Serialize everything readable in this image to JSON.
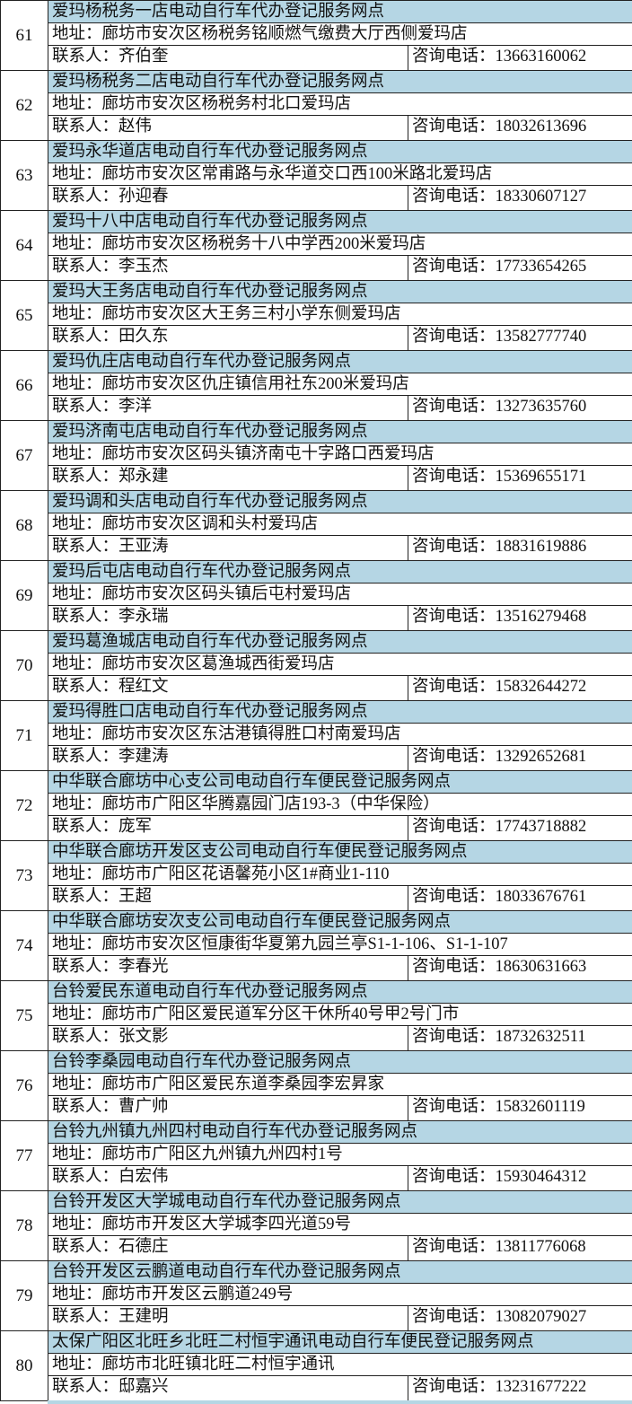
{
  "labels": {
    "address": "地址：",
    "contact": "联系人：",
    "phone": "咨询电话："
  },
  "colors": {
    "title_fill": "#b5d6e4",
    "border": "#222222"
  },
  "entries": [
    {
      "no": "61",
      "name": "爱玛杨税务一店电动自行车代办登记服务网点",
      "address": "廊坊市安次区杨税务铭顺燃气缴费大厅西侧爱玛店",
      "contact": "齐伯奎",
      "phone": "13663160062"
    },
    {
      "no": "62",
      "name": "爱玛杨税务二店电动自行车代办登记服务网点",
      "address": "廊坊市安次区杨税务村北口爱玛店",
      "contact": "赵伟",
      "phone": "18032613696"
    },
    {
      "no": "63",
      "name": "爱玛永华道店电动自行车代办登记服务网点",
      "address": "廊坊市安次区常甫路与永华道交口西100米路北爱玛店",
      "contact": "孙迎春",
      "phone": "18330607127"
    },
    {
      "no": "64",
      "name": "爱玛十八中店电动自行车代办登记服务网点",
      "address": "廊坊市安次区杨税务十八中学西200米爱玛店",
      "contact": "李玉杰",
      "phone": "17733654265"
    },
    {
      "no": "65",
      "name": "爱玛大王务店电动自行车代办登记服务网点",
      "address": "廊坊市安次区大王务三村小学东侧爱玛店",
      "contact": "田久东",
      "phone": "13582777740"
    },
    {
      "no": "66",
      "name": "爱玛仇庄店电动自行车代办登记服务网点",
      "address": "廊坊市安次区仇庄镇信用社东200米爱玛店",
      "contact": "李洋",
      "phone": "13273635760"
    },
    {
      "no": "67",
      "name": "爱玛济南屯店电动自行车代办登记服务网点",
      "address": "廊坊市安次区码头镇济南屯十字路口西爱玛店",
      "contact": "郑永建",
      "phone": "15369655171"
    },
    {
      "no": "68",
      "name": "爱玛调和头店电动自行车代办登记服务网点",
      "address": "廊坊市安次区调和头村爱玛店",
      "contact": "王亚涛",
      "phone": "18831619886"
    },
    {
      "no": "69",
      "name": "爱玛后屯店电动自行车代办登记服务网点",
      "address": "廊坊市安次区码头镇后屯村爱玛店",
      "contact": "李永瑞",
      "phone": "13516279468"
    },
    {
      "no": "70",
      "name": "爱玛葛渔城店电动自行车代办登记服务网点",
      "address": "廊坊市安次区葛渔城西街爱玛店",
      "contact": "程红文",
      "phone": "15832644272"
    },
    {
      "no": "71",
      "name": "爱玛得胜口店电动自行车代办登记服务网点",
      "address": "廊坊市安次区东沽港镇得胜口村南爱玛店",
      "contact": "李建涛",
      "phone": "13292652681"
    },
    {
      "no": "72",
      "name": "中华联合廊坊中心支公司电动自行车便民登记服务网点",
      "address": "廊坊市广阳区华腾嘉园门店193-3（中华保险）",
      "contact": "庞军",
      "phone": "17743718882"
    },
    {
      "no": "73",
      "name": "中华联合廊坊开发区支公司电动自行车便民登记服务网点",
      "address": "廊坊市广阳区花语馨苑小区1#商业1-110",
      "contact": "王超",
      "phone": "18033676761"
    },
    {
      "no": "74",
      "name": "中华联合廊坊安次支公司电动自行车便民登记服务网点",
      "address": "廊坊市安次区恒康街华夏第九园兰亭S1-1-106、S1-1-107",
      "contact": "李春光",
      "phone": "18630631663"
    },
    {
      "no": "75",
      "name": "台铃爱民东道电动自行车代办登记服务网点",
      "address": "廊坊市广阳区爱民道军分区干休所40号甲2号门市",
      "contact": "张文影",
      "phone": "18732632511"
    },
    {
      "no": "76",
      "name": "台铃李桑园电动自行车代办登记服务网点",
      "address": "廊坊市广阳区爱民东道李桑园李宏昇家",
      "contact": "曹广帅",
      "phone": "15832601119"
    },
    {
      "no": "77",
      "name": "台铃九州镇九州四村电动自行车代办登记服务网点",
      "address": "廊坊市广阳区九州镇九州四村1号",
      "contact": "白宏伟",
      "phone": "15930464312"
    },
    {
      "no": "78",
      "name": "台铃开发区大学城电动自行车代办登记服务网点",
      "address": "廊坊市开发区大学城李四光道59号",
      "contact": "石德庄",
      "phone": "13811776068"
    },
    {
      "no": "79",
      "name": "台铃开发区云鹏道电动自行车代办登记服务网点",
      "address": "廊坊市开发区云鹏道249号",
      "contact": "王建明",
      "phone": "13082079027"
    },
    {
      "no": "80",
      "name": "太保广阳区北旺乡北旺二村恒宇通讯电动自行车便民登记服务网点",
      "address": "廊坊市北旺镇北旺二村恒宇通讯",
      "contact": "邸嘉兴",
      "phone": "13231677222"
    }
  ]
}
